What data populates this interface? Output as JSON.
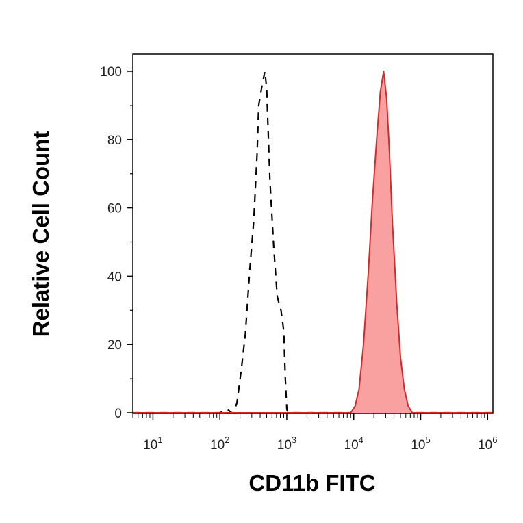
{
  "chart_data": {
    "type": "area",
    "title": "",
    "xlabel": "CD11b FITC",
    "ylabel": "Relative Cell Count",
    "x_scale": "log",
    "xlim": [
      5,
      1200000
    ],
    "ylim": [
      0,
      100
    ],
    "grid": false,
    "legend": "none",
    "x_ticks": [
      {
        "base": "10",
        "exp": "1",
        "value": 10
      },
      {
        "base": "10",
        "exp": "2",
        "value": 100
      },
      {
        "base": "10",
        "exp": "3",
        "value": 1000
      },
      {
        "base": "10",
        "exp": "4",
        "value": 10000
      },
      {
        "base": "10",
        "exp": "5",
        "value": 100000
      },
      {
        "base": "10",
        "exp": "6",
        "value": 1000000
      }
    ],
    "y_ticks": [
      "0",
      "20",
      "40",
      "60",
      "80",
      "100"
    ],
    "series": [
      {
        "style": "dashed",
        "color": "#000000",
        "fill": "none",
        "x": [
          5,
          100,
          130,
          150,
          160,
          180,
          210,
          240,
          280,
          320,
          360,
          380,
          420,
          470,
          500,
          560,
          640,
          720,
          820,
          900,
          950,
          1000,
          1050,
          1200,
          10000,
          1200000
        ],
        "y": [
          0,
          0,
          1,
          0,
          0,
          3,
          13,
          23,
          42,
          56,
          76,
          90,
          95,
          100,
          95,
          68,
          48,
          34,
          30,
          24,
          10,
          1,
          0,
          0,
          0,
          0
        ]
      },
      {
        "style": "solid",
        "color": "#d42a2a",
        "fill": "#f9a0a0",
        "x": [
          5,
          9000,
          10500,
          12000,
          14000,
          16500,
          19000,
          22000,
          25000,
          28000,
          31000,
          34000,
          38000,
          44000,
          50000,
          57000,
          65000,
          75000,
          90000,
          1200000
        ],
        "y": [
          0,
          0,
          2,
          7,
          20,
          41,
          62,
          80,
          94,
          100,
          92,
          77,
          55,
          32,
          16,
          7,
          2,
          0,
          0,
          0
        ]
      }
    ]
  }
}
